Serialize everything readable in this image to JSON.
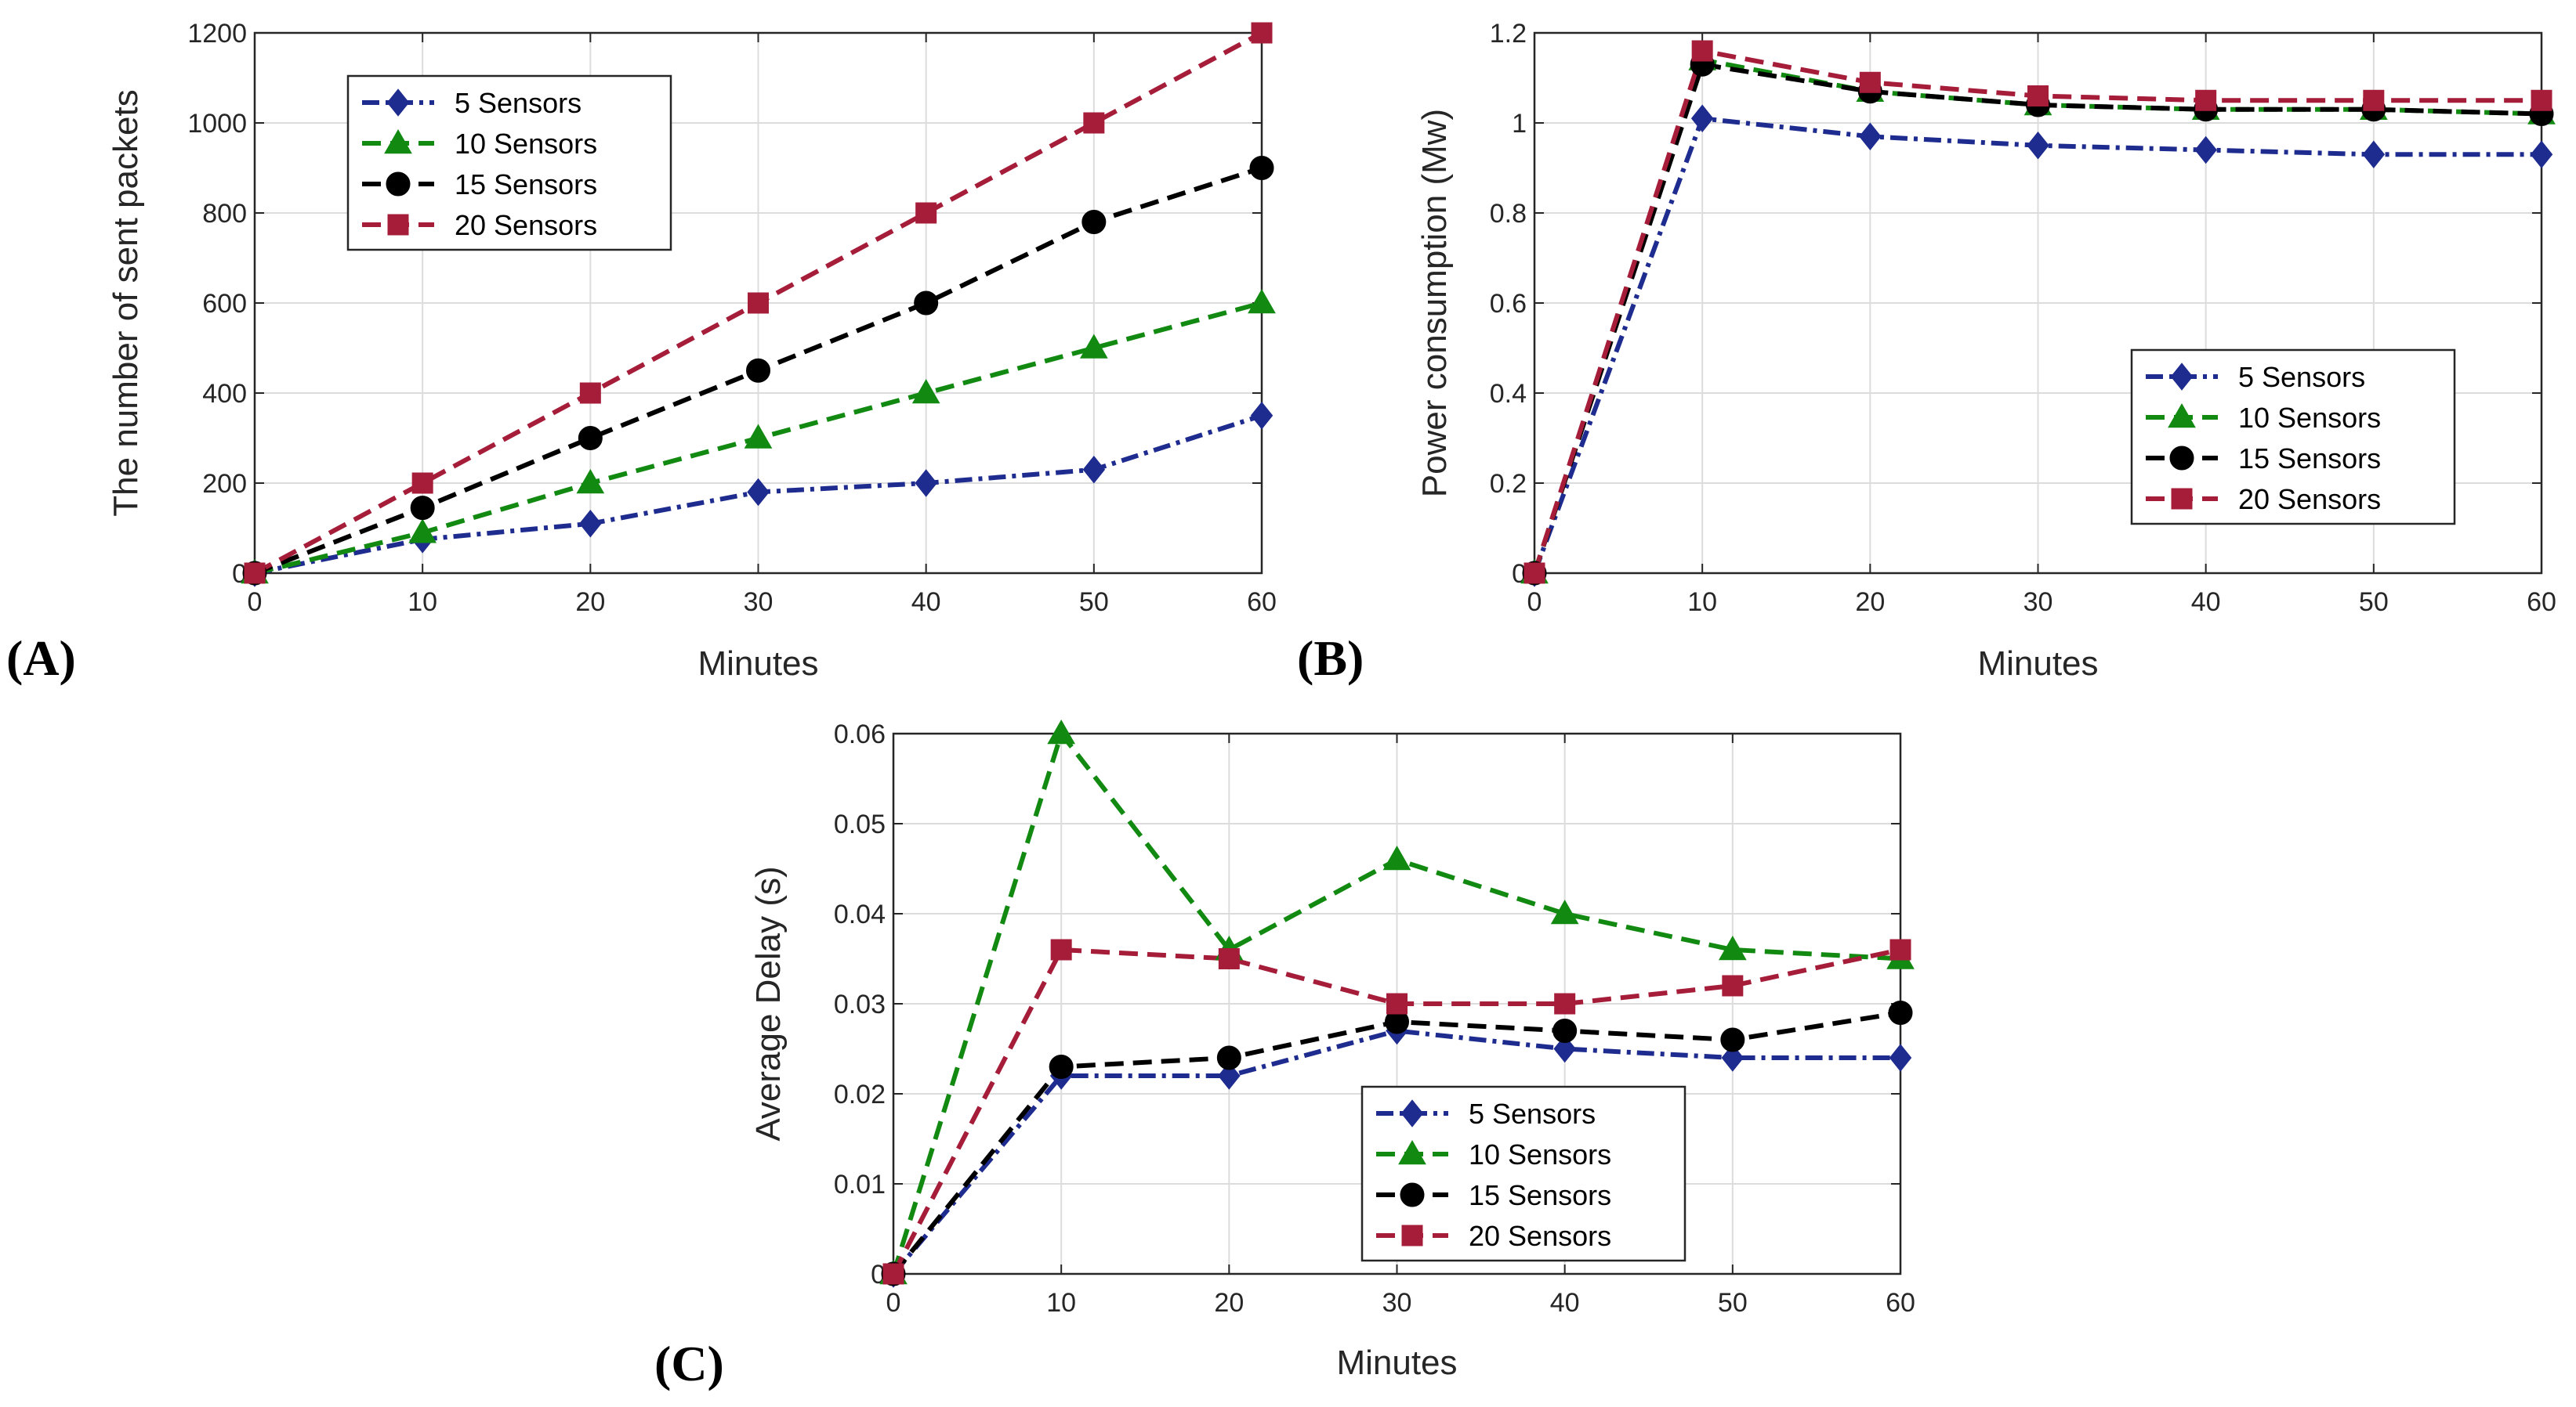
{
  "colors": {
    "s5": "#1f2c8f",
    "s10": "#128a12",
    "s15": "#000000",
    "s20": "#a61d3a",
    "grid": "#dcdcdc",
    "axis": "#262626"
  },
  "chart_data": [
    {
      "id": "A",
      "type": "line",
      "panel_label": "(A)",
      "title": "",
      "xlabel": "Minutes",
      "ylabel": "The number of sent packets",
      "xlim": [
        0,
        60
      ],
      "ylim": [
        0,
        1200
      ],
      "xticks": [
        "0",
        "10",
        "20",
        "30",
        "40",
        "50",
        "60"
      ],
      "yticks": [
        "0",
        "200",
        "400",
        "600",
        "800",
        "1000",
        "1200"
      ],
      "x": [
        0,
        10,
        20,
        30,
        40,
        50,
        60
      ],
      "grid": true,
      "legend_position": "top-left",
      "series": [
        {
          "name": "5 Sensors",
          "values": [
            0,
            75,
            110,
            180,
            200,
            230,
            350
          ]
        },
        {
          "name": "10 Sensors",
          "values": [
            0,
            90,
            200,
            300,
            400,
            500,
            600
          ]
        },
        {
          "name": "15 Sensors",
          "values": [
            0,
            145,
            300,
            450,
            600,
            780,
            900
          ]
        },
        {
          "name": "20 Sensors",
          "values": [
            0,
            200,
            400,
            600,
            800,
            1000,
            1200
          ]
        }
      ]
    },
    {
      "id": "B",
      "type": "line",
      "panel_label": "(B)",
      "title": "",
      "xlabel": "Minutes",
      "ylabel": "Power consumption (Mw)",
      "xlim": [
        0,
        60
      ],
      "ylim": [
        0,
        1.2
      ],
      "xticks": [
        "0",
        "10",
        "20",
        "30",
        "40",
        "50",
        "60"
      ],
      "yticks": [
        "0",
        "0.2",
        "0.4",
        "0.6",
        "0.8",
        "1",
        "1.2"
      ],
      "x": [
        0,
        10,
        20,
        30,
        40,
        50,
        60
      ],
      "grid": true,
      "legend_position": "bottom-right",
      "series": [
        {
          "name": "5 Sensors",
          "values": [
            0,
            1.01,
            0.97,
            0.95,
            0.94,
            0.93,
            0.93
          ]
        },
        {
          "name": "10 Sensors",
          "values": [
            0,
            1.14,
            1.07,
            1.04,
            1.03,
            1.03,
            1.02
          ]
        },
        {
          "name": "15 Sensors",
          "values": [
            0,
            1.13,
            1.07,
            1.04,
            1.03,
            1.03,
            1.02
          ]
        },
        {
          "name": "20 Sensors",
          "values": [
            0,
            1.16,
            1.09,
            1.06,
            1.05,
            1.05,
            1.05
          ]
        }
      ]
    },
    {
      "id": "C",
      "type": "line",
      "panel_label": "(C)",
      "title": "",
      "xlabel": "Minutes",
      "ylabel": "Average Delay (s)",
      "xlim": [
        0,
        60
      ],
      "ylim": [
        0,
        0.06
      ],
      "xticks": [
        "0",
        "10",
        "20",
        "30",
        "40",
        "50",
        "60"
      ],
      "yticks": [
        "0",
        "0.01",
        "0.02",
        "0.03",
        "0.04",
        "0.05",
        "0.06"
      ],
      "x": [
        0,
        10,
        20,
        30,
        40,
        50,
        60
      ],
      "grid": true,
      "legend_position": "bottom-center",
      "series": [
        {
          "name": "5 Sensors",
          "values": [
            0,
            0.022,
            0.022,
            0.027,
            0.025,
            0.024,
            0.024
          ]
        },
        {
          "name": "10 Sensors",
          "values": [
            0,
            0.06,
            0.036,
            0.046,
            0.04,
            0.036,
            0.035
          ]
        },
        {
          "name": "15 Sensors",
          "values": [
            0,
            0.023,
            0.024,
            0.028,
            0.027,
            0.026,
            0.029
          ]
        },
        {
          "name": "20 Sensors",
          "values": [
            0,
            0.036,
            0.035,
            0.03,
            0.03,
            0.032,
            0.036
          ]
        }
      ]
    }
  ]
}
